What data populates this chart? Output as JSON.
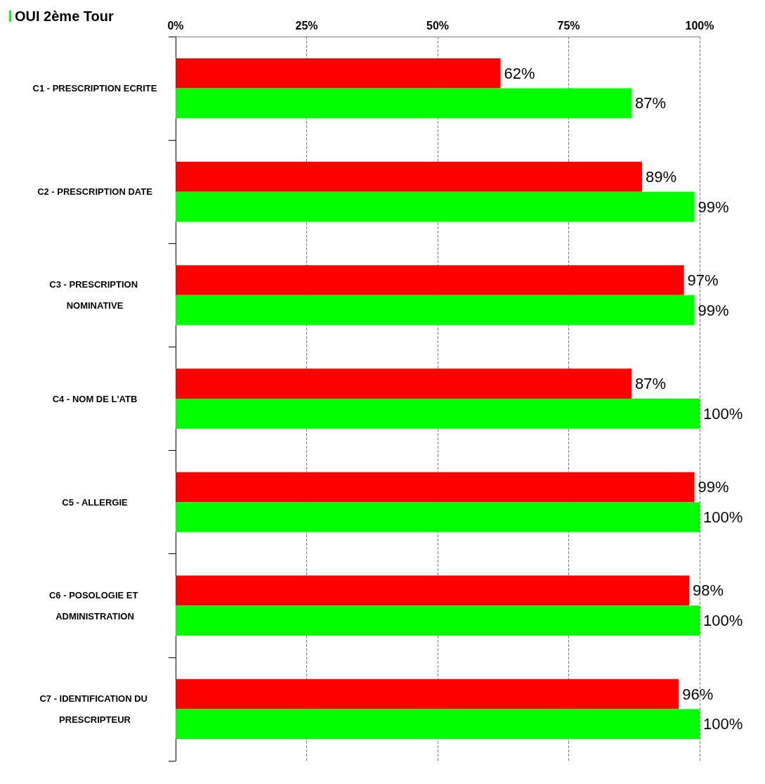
{
  "chart_data": {
    "type": "bar",
    "orientation": "horizontal",
    "categories": [
      "C1 - PRESCRIPTION ECRITE",
      "C2 - PRESCRIPTION DATE",
      "C3 - PRESCRIPTION NOMINATIVE",
      "C4 - NOM DE L'ATB",
      "C5 - ALLERGIE",
      "C6 - POSOLOGIE ET ADMINISTRATION",
      "C7 - IDENTIFICATION DU PRESCRIPTEUR"
    ],
    "series": [
      {
        "color": "#ff0000",
        "values": [
          62,
          89,
          97,
          87,
          99,
          98,
          96
        ],
        "value_labels": [
          "62%",
          "89%",
          "97%",
          "87%",
          "99%",
          "98%",
          "96%"
        ]
      },
      {
        "name": "OUI 2ème Tour",
        "color": "#00ff00",
        "values": [
          87,
          99,
          99,
          100,
          100,
          100,
          100
        ],
        "value_labels": [
          "87%",
          "99%",
          "99%",
          "100%",
          "100%",
          "100%",
          "100%"
        ]
      }
    ],
    "xlim": [
      0,
      100
    ],
    "xticks": [
      {
        "value": 0,
        "label": "0%"
      },
      {
        "value": 25,
        "label": "25%"
      },
      {
        "value": 50,
        "label": "50%"
      },
      {
        "value": 75,
        "label": "75%"
      },
      {
        "value": 100,
        "label": "100%"
      }
    ],
    "grid": "x",
    "legend": "top left"
  }
}
